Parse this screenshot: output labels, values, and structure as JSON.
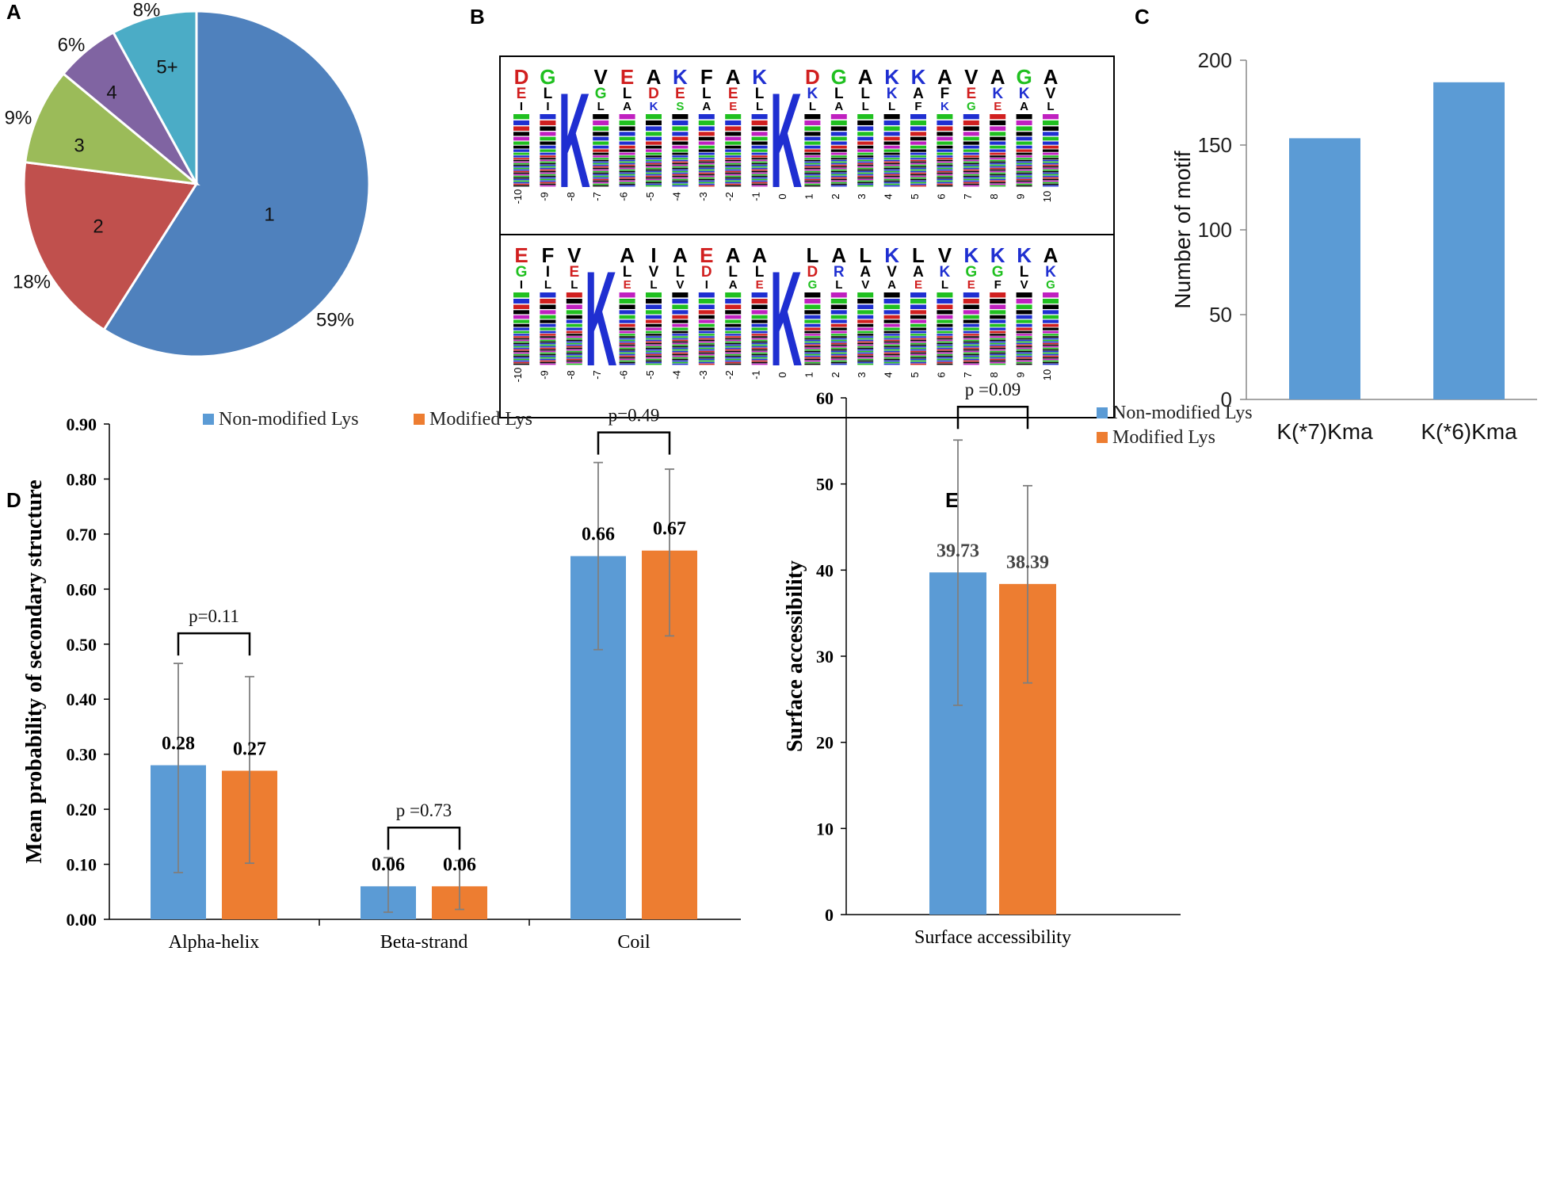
{
  "panels": {
    "a": "A",
    "b": "B",
    "c": "C",
    "d": "D",
    "e": "E"
  },
  "colors": {
    "blue_pie": "#4F81BD",
    "red_pie": "#C0504D",
    "green_pie": "#9BBB59",
    "purple_pie": "#8064A2",
    "teal_pie": "#4BACC6",
    "bar_blue": "#5B9BD5",
    "bar_orange": "#ED7D31",
    "error_bar": "#7F7F7F"
  },
  "chart_data": [
    {
      "id": "A",
      "type": "pie",
      "slices": [
        {
          "label": "1",
          "pct_label": "59%",
          "value": 59
        },
        {
          "label": "2",
          "pct_label": "18%",
          "value": 18
        },
        {
          "label": "3",
          "pct_label": "9%",
          "value": 9
        },
        {
          "label": "4",
          "pct_label": "6%",
          "value": 6
        },
        {
          "label": "5+",
          "pct_label": "8%",
          "value": 8
        }
      ]
    },
    {
      "id": "B",
      "type": "sequence_logo",
      "logos": [
        {
          "motif": "K(*7)Kma",
          "positions": [
            "-10",
            "-9",
            "-8",
            "-7",
            "-6",
            "-5",
            "-4",
            "-3",
            "-2",
            "-1",
            "0",
            "1",
            "2",
            "3",
            "4",
            "5",
            "6",
            "7",
            "8",
            "9",
            "10"
          ],
          "top_residues": [
            "D",
            "G",
            "K",
            "V",
            "E",
            "A",
            "K",
            "F",
            "A",
            "K",
            "K",
            "D",
            "G",
            "A",
            "K",
            "K",
            "A",
            "V",
            "A",
            "G",
            "A"
          ],
          "second_residues": [
            "E",
            "L",
            "",
            "G",
            "L",
            "D",
            "E",
            "L",
            "E",
            "L",
            "",
            "K",
            "L",
            "L",
            "K",
            "A",
            "F",
            "E",
            "K",
            "K",
            "V"
          ],
          "third_residues": [
            "I",
            "I",
            "",
            "L",
            "A",
            "K",
            "S",
            "A",
            "E",
            "L",
            "",
            "L",
            "A",
            "L",
            "L",
            "F",
            "K",
            "G",
            "E",
            "A",
            "L"
          ]
        },
        {
          "motif": "K(*6)Kma",
          "positions": [
            "-10",
            "-9",
            "-8",
            "-7",
            "-6",
            "-5",
            "-4",
            "-3",
            "-2",
            "-1",
            "0",
            "1",
            "2",
            "3",
            "4",
            "5",
            "6",
            "7",
            "8",
            "9",
            "10"
          ],
          "top_residues": [
            "E",
            "F",
            "V",
            "K",
            "A",
            "I",
            "A",
            "E",
            "A",
            "A",
            "K",
            "L",
            "A",
            "L",
            "K",
            "L",
            "V",
            "K",
            "K",
            "K",
            "A"
          ],
          "second_residues": [
            "G",
            "I",
            "E",
            "",
            "L",
            "V",
            "L",
            "D",
            "L",
            "L",
            "",
            "D",
            "R",
            "A",
            "V",
            "A",
            "K",
            "G",
            "G",
            "L",
            "K"
          ],
          "third_residues": [
            "I",
            "L",
            "L",
            "",
            "E",
            "L",
            "V",
            "I",
            "A",
            "E",
            "",
            "G",
            "L",
            "V",
            "A",
            "E",
            "L",
            "E",
            "F",
            "V",
            "G"
          ]
        }
      ]
    },
    {
      "id": "C",
      "type": "bar",
      "categories": [
        "K(*7)Kma",
        "K(*6)Kma"
      ],
      "values": [
        154,
        187
      ],
      "ylabel": "Number of motif",
      "ylim": [
        0,
        200
      ],
      "yticks": [
        "0",
        "50",
        "100",
        "150",
        "200"
      ]
    },
    {
      "id": "D",
      "type": "bar",
      "categories": [
        "Alpha-helix",
        "Beta-strand",
        "Coil"
      ],
      "series": [
        {
          "name": "Non-modified Lys",
          "values": [
            0.28,
            0.06,
            0.66
          ],
          "value_labels": [
            "0.28",
            "0.06",
            "0.66"
          ],
          "err_low": [
            0.085,
            0.013,
            0.49
          ],
          "err_high": [
            0.465,
            0.112,
            0.83
          ]
        },
        {
          "name": "Modified Lys",
          "values": [
            0.27,
            0.06,
            0.67
          ],
          "value_labels": [
            "0.27",
            "0.06",
            "0.67"
          ],
          "err_low": [
            0.102,
            0.018,
            0.515
          ],
          "err_high": [
            0.441,
            0.107,
            0.818
          ]
        }
      ],
      "pvalues": [
        "p=0.11",
        "p =0.73",
        "p=0.49"
      ],
      "ylabel": "Mean probability of secondary structure",
      "ylim": [
        0,
        0.9
      ],
      "yticks": [
        "0.00",
        "0.10",
        "0.20",
        "0.30",
        "0.40",
        "0.50",
        "0.60",
        "0.70",
        "0.80",
        "0.90"
      ],
      "legend": "top"
    },
    {
      "id": "E",
      "type": "bar",
      "categories": [
        "Surface accessibility"
      ],
      "series": [
        {
          "name": "Non-modified Lys",
          "values": [
            39.73
          ],
          "value_labels": [
            "39.73"
          ],
          "err_low": [
            24.3
          ],
          "err_high": [
            55.1
          ]
        },
        {
          "name": "Modified Lys",
          "values": [
            38.39
          ],
          "value_labels": [
            "38.39"
          ],
          "err_low": [
            26.9
          ],
          "err_high": [
            49.8
          ]
        }
      ],
      "pvalues": [
        "p =0.09"
      ],
      "ylabel": "Surface accessibility",
      "ylim": [
        0,
        60
      ],
      "yticks": [
        "0",
        "10",
        "20",
        "30",
        "40",
        "50",
        "60"
      ],
      "legend": "top-right"
    }
  ]
}
